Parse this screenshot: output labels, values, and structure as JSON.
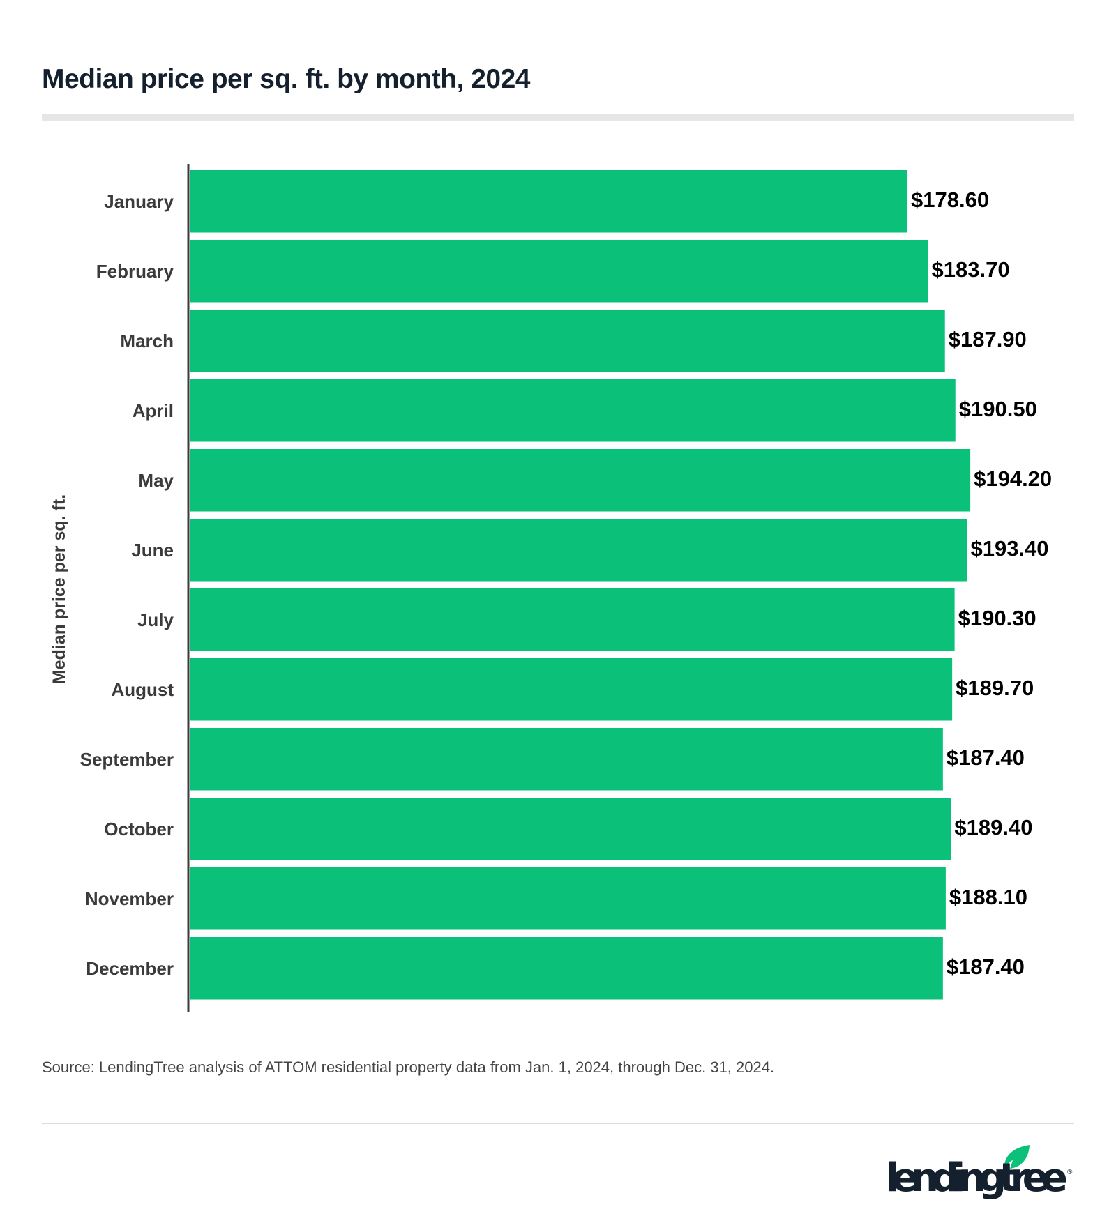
{
  "chart_data": {
    "type": "bar",
    "orientation": "horizontal",
    "title": "Median price per sq. ft. by month, 2024",
    "ylabel": "Median price per sq. ft.",
    "xlabel": "",
    "categories": [
      "January",
      "February",
      "March",
      "April",
      "May",
      "June",
      "July",
      "August",
      "September",
      "October",
      "November",
      "December"
    ],
    "values": [
      178.6,
      183.7,
      187.9,
      190.5,
      194.2,
      193.4,
      190.3,
      189.7,
      187.4,
      189.4,
      188.1,
      187.4
    ],
    "data_labels": [
      "$178.60",
      "$183.70",
      "$187.90",
      "$190.50",
      "$194.20",
      "$193.40",
      "$190.30",
      "$189.70",
      "$187.40",
      "$189.40",
      "$188.10",
      "$187.40"
    ],
    "xlim": [
      0,
      200
    ],
    "grid": false,
    "legend": "none",
    "bar_color": "#0bc17a"
  },
  "source": "Source: LendingTree analysis of ATTOM residential property data from Jan. 1, 2024, through Dec. 31, 2024.",
  "logo": {
    "text": "lendingtree",
    "leaf_color": "#0bc17a",
    "text_color": "#14202e"
  }
}
